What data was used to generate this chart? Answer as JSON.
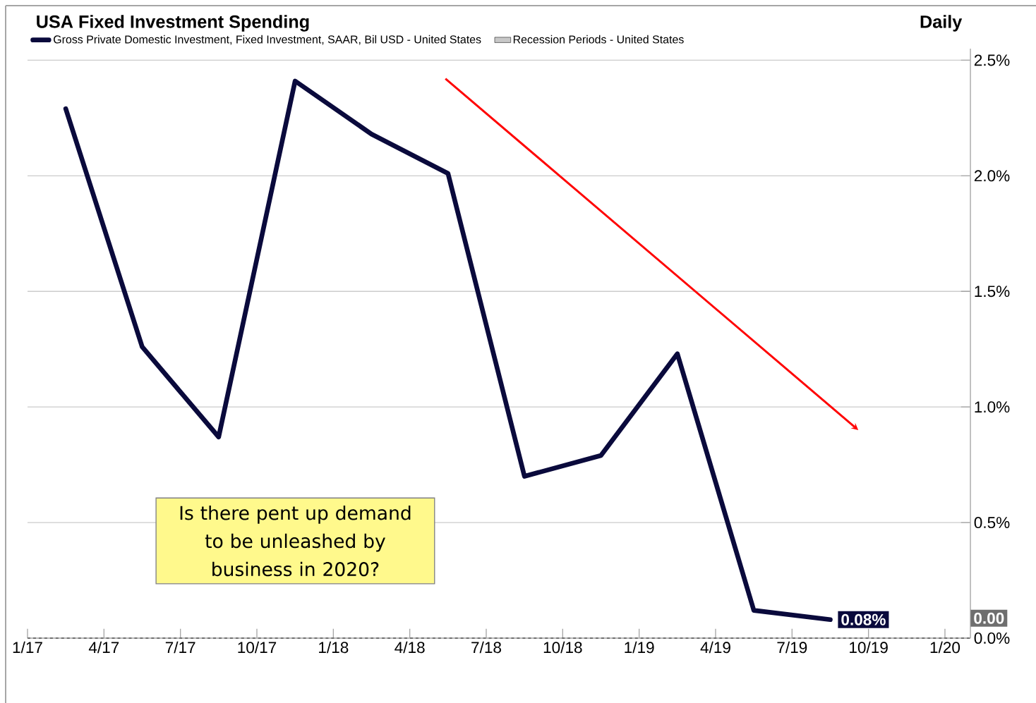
{
  "chart_data": {
    "type": "line",
    "title": "USA Fixed Investment Spending",
    "subtitle": "Daily",
    "x": [
      "2017-02-15",
      "2017-05-15",
      "2017-08-15",
      "2017-11-15",
      "2018-02-15",
      "2018-05-15",
      "2018-08-15",
      "2018-11-15",
      "2019-02-15",
      "2019-05-15",
      "2019-08-15"
    ],
    "series": [
      {
        "name": "Gross Private Domestic Investment, Fixed Investment, SAAR, Bil USD - United States",
        "color": "#0a0a3c",
        "values": [
          2.29,
          1.26,
          0.87,
          2.41,
          2.18,
          2.01,
          0.7,
          0.79,
          1.23,
          0.12,
          0.08
        ],
        "value_labels": [
          null,
          null,
          null,
          null,
          null,
          null,
          null,
          null,
          null,
          null,
          "0.08%"
        ]
      },
      {
        "name": "Recession Periods - United States",
        "type": "bar",
        "color": "#c8c8c8",
        "values": [
          null,
          null,
          null,
          null,
          null,
          null,
          null,
          null,
          null,
          null,
          null
        ]
      }
    ],
    "xlim": [
      "2017-01",
      "2020-02"
    ],
    "xticks": [
      {
        "value": "2017-01",
        "label": "1/17"
      },
      {
        "value": "2017-04",
        "label": "4/17"
      },
      {
        "value": "2017-07",
        "label": "7/17"
      },
      {
        "value": "2017-10",
        "label": "10/17"
      },
      {
        "value": "2018-01",
        "label": "1/18"
      },
      {
        "value": "2018-04",
        "label": "4/18"
      },
      {
        "value": "2018-07",
        "label": "7/18"
      },
      {
        "value": "2018-10",
        "label": "10/18"
      },
      {
        "value": "2019-01",
        "label": "1/19"
      },
      {
        "value": "2019-04",
        "label": "4/19"
      },
      {
        "value": "2019-07",
        "label": "7/19"
      },
      {
        "value": "2019-10",
        "label": "10/19"
      },
      {
        "value": "2020-01",
        "label": "1/20"
      }
    ],
    "ylim": [
      0,
      2.55
    ],
    "yticks": [
      {
        "value": 0,
        "label": "0.0%"
      },
      {
        "value": 0.5,
        "label": "0.5%"
      },
      {
        "value": 1,
        "label": "1.0%"
      },
      {
        "value": 1.5,
        "label": "1.5%"
      },
      {
        "value": 2,
        "label": "2.0%"
      },
      {
        "value": 2.5,
        "label": "2.5%"
      }
    ],
    "ref_lines": [
      {
        "axis": "y",
        "value": 0,
        "label": "0.00",
        "color": "#6e6e6e",
        "line_style": "dashed"
      }
    ],
    "annotations": [
      "Is there pent up demand to be unleashed by business in 2020?"
    ],
    "grid": "y",
    "legend": "top left",
    "marker": "none"
  }
}
